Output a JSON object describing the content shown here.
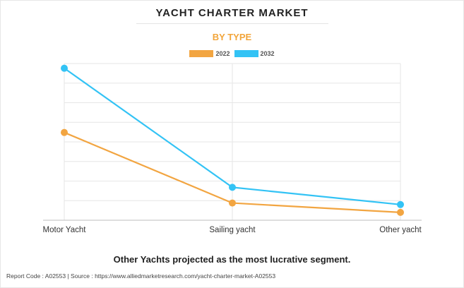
{
  "header": {
    "title": "YACHT CHARTER MARKET",
    "subtitle": "BY TYPE"
  },
  "colors": {
    "subtitle": "#f2a53a",
    "series_2022": "#f2a541",
    "series_2032": "#33c3f5",
    "grid": "#e6e6e6"
  },
  "chart_data": {
    "type": "line",
    "categories": [
      "Motor Yacht",
      "Sailing yacht",
      "Other yacht"
    ],
    "series": [
      {
        "name": "2022",
        "values": [
          0.56,
          0.11,
          0.05
        ]
      },
      {
        "name": "2032",
        "values": [
          0.97,
          0.21,
          0.1
        ]
      }
    ],
    "ylim": [
      0,
      1
    ],
    "grid": true,
    "legend_position": "top-center"
  },
  "tagline": "Other Yachts projected as the most lucrative segment.",
  "footer": "Report Code : A02553  |  Source : https://www.alliedmarketresearch.com/yacht-charter-market-A02553"
}
